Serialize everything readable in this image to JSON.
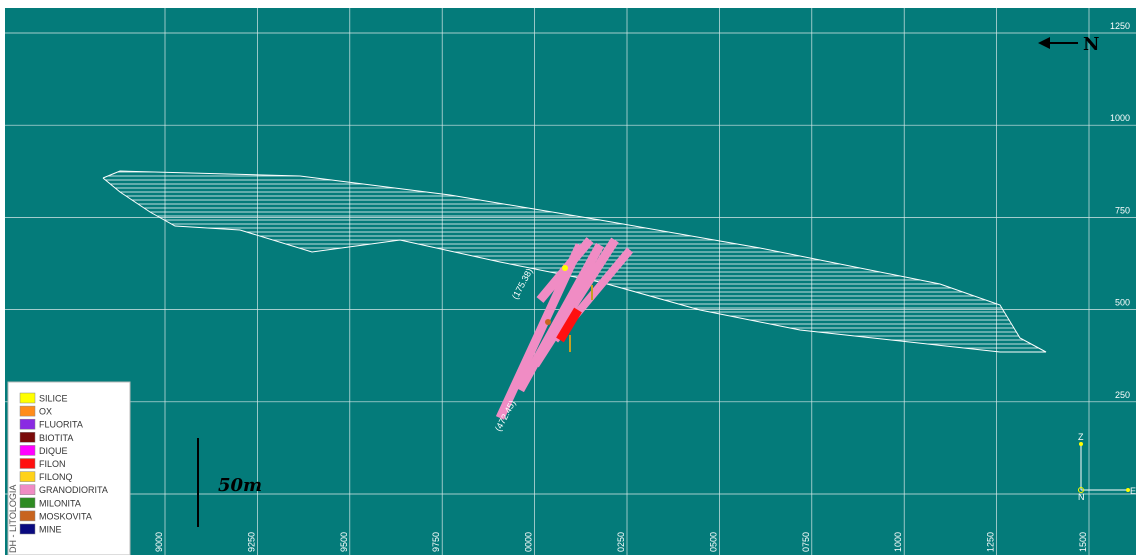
{
  "view": {
    "north": {
      "label": "N"
    },
    "scale_bar": {
      "label": "50m"
    },
    "y_labels": [
      "1250",
      "1000",
      "750",
      "500",
      "250"
    ],
    "x_labels": [
      "9000",
      "9250",
      "9500",
      "9750",
      "0000",
      "0250",
      "0500",
      "0750",
      "1000",
      "1250",
      "1500"
    ],
    "drillhole_labels": [
      "(175.38)",
      "(472.45)"
    ],
    "triad": {
      "z": "Z",
      "n": "N",
      "e": "E"
    }
  },
  "legend": {
    "title": "DH - LITOLOGIA",
    "items": [
      {
        "label": "SILICE",
        "color": "#ffff00"
      },
      {
        "label": "OX",
        "color": "#ff8c1a"
      },
      {
        "label": "FLUORITA",
        "color": "#8a2be2"
      },
      {
        "label": "BIOTITA",
        "color": "#7a0a0a"
      },
      {
        "label": "DIQUE",
        "color": "#ff00ff"
      },
      {
        "label": "FILON",
        "color": "#ff1010"
      },
      {
        "label": "FILONQ",
        "color": "#ffd21a"
      },
      {
        "label": "GRANODIORITA",
        "color": "#f08cc4"
      },
      {
        "label": "MILONITA",
        "color": "#2e8b22"
      },
      {
        "label": "MOSKOVITA",
        "color": "#c8641e"
      },
      {
        "label": "MINE",
        "color": "#0a0a80"
      }
    ]
  }
}
